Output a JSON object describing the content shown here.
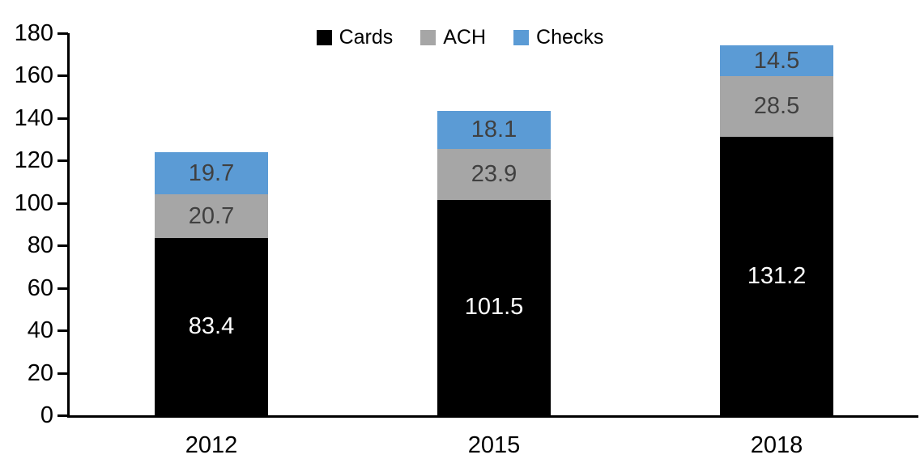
{
  "chart_data": {
    "type": "bar",
    "stacked": true,
    "title": "",
    "xlabel": "",
    "ylabel": "",
    "categories": [
      "2012",
      "2015",
      "2018"
    ],
    "series": [
      {
        "name": "Cards",
        "values": [
          83.4,
          101.5,
          131.2
        ],
        "color": "#000000",
        "label_color": "#FFFFFF"
      },
      {
        "name": "ACH",
        "values": [
          20.7,
          23.9,
          28.5
        ],
        "color": "#A6A6A6",
        "label_color": "#404040"
      },
      {
        "name": "Checks",
        "values": [
          19.7,
          18.1,
          14.5
        ],
        "color": "#5B9BD5",
        "label_color": "#404040"
      }
    ],
    "totals": [
      123.8,
      143.5,
      174.2
    ],
    "ylim": [
      0,
      180
    ],
    "yticks": [
      0,
      20,
      40,
      60,
      80,
      100,
      120,
      140,
      160,
      180
    ],
    "grid": false,
    "data_labels": true,
    "legend_position": "top",
    "axis_color": "#000000",
    "background_color": "#FFFFFF"
  }
}
